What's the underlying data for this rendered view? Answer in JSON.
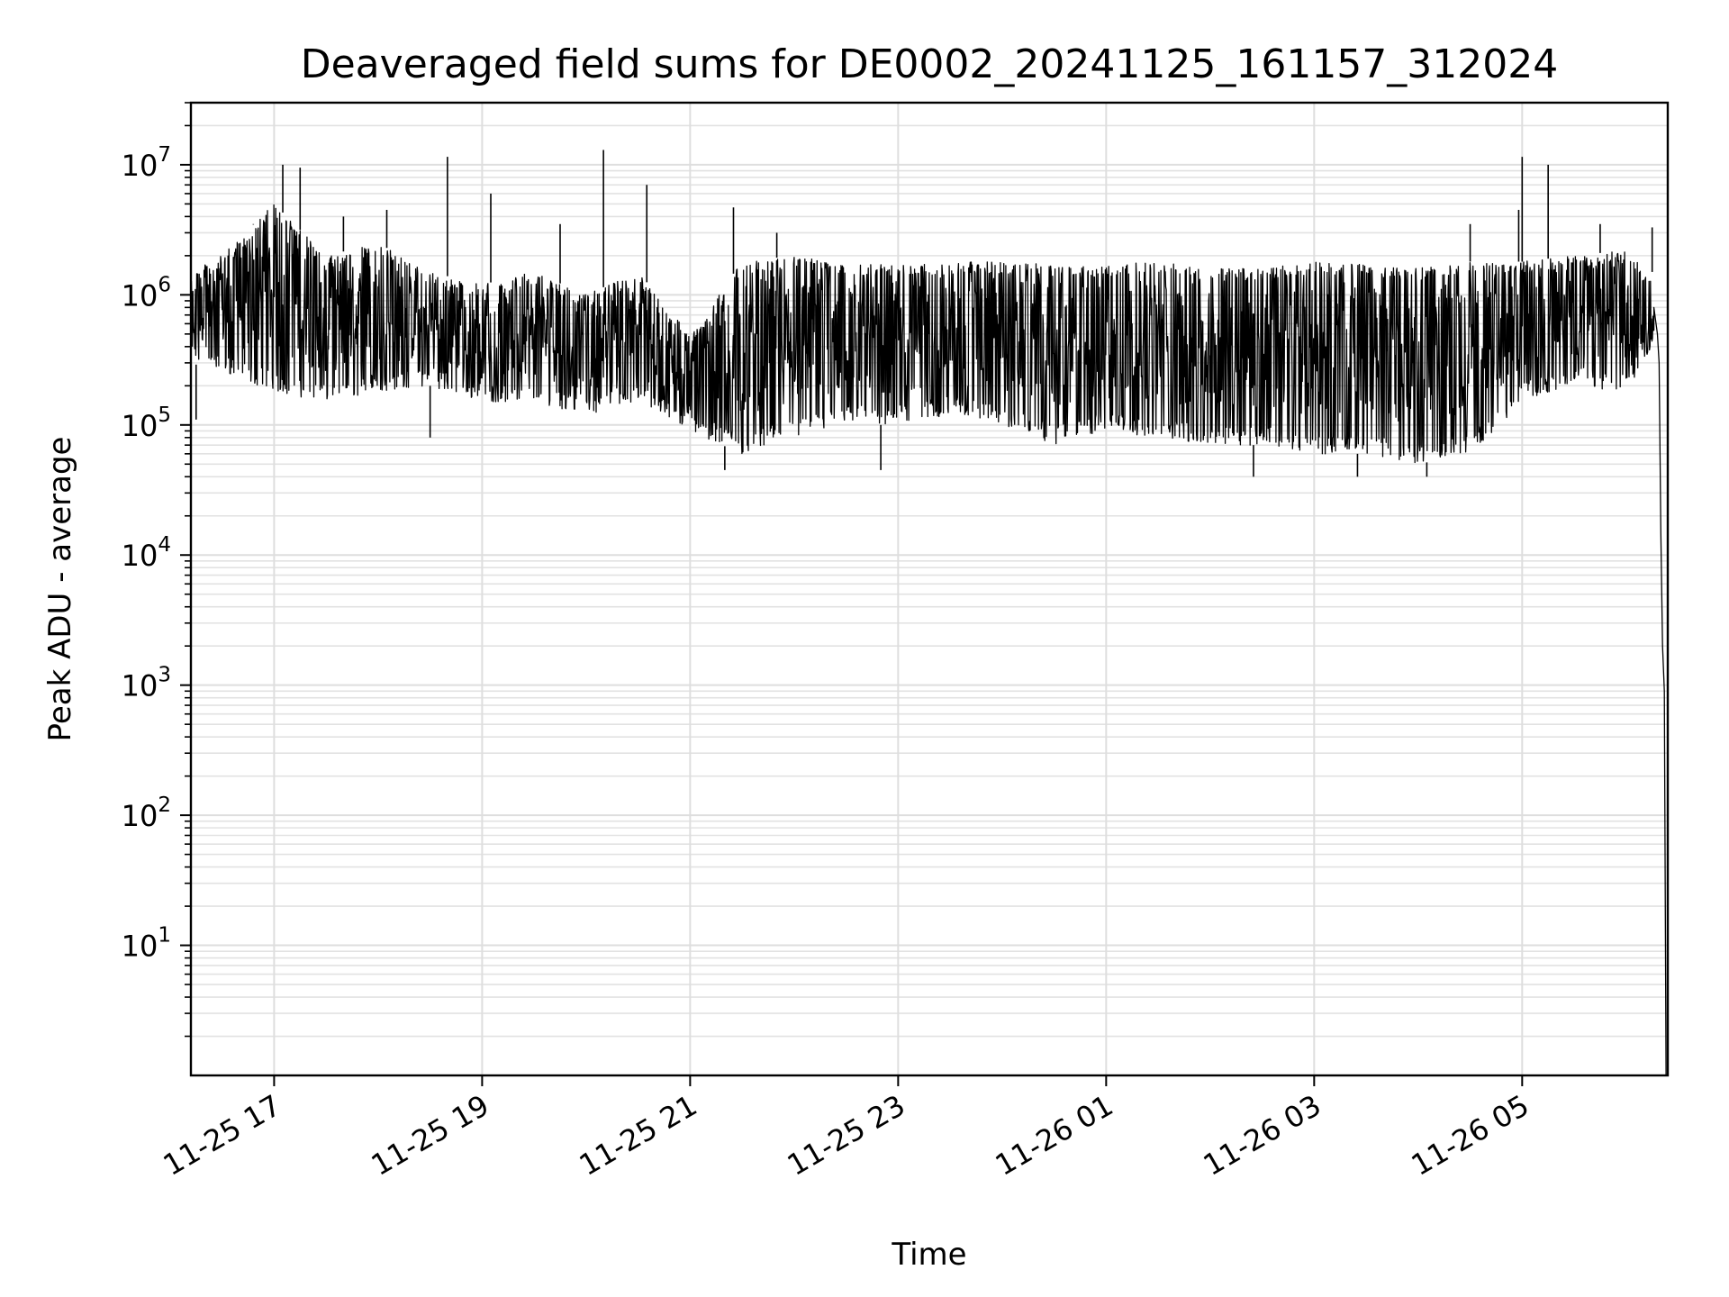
{
  "chart_data": {
    "type": "line",
    "title": "Deaveraged field sums for DE0002_20241125_161157_312024",
    "xlabel": "Time",
    "ylabel": "Peak ADU - average",
    "x_range": [
      "2024-11-25 16:12",
      "2024-11-26 06:24"
    ],
    "y_scale": "log",
    "ylim": [
      1,
      30000000
    ],
    "grid": true,
    "series_color": "#000000",
    "x_ticks": [
      {
        "date": "2024-11-25 17:00",
        "label": "11-25 17"
      },
      {
        "date": "2024-11-25 19:00",
        "label": "11-25 19"
      },
      {
        "date": "2024-11-25 21:00",
        "label": "11-25 21"
      },
      {
        "date": "2024-11-25 23:00",
        "label": "11-25 23"
      },
      {
        "date": "2024-11-26 01:00",
        "label": "11-26 01"
      },
      {
        "date": "2024-11-26 03:00",
        "label": "11-26 03"
      },
      {
        "date": "2024-11-26 05:00",
        "label": "11-26 05"
      }
    ],
    "y_ticks": [
      {
        "value": 10,
        "base": "10",
        "exp": "1"
      },
      {
        "value": 100,
        "base": "10",
        "exp": "2"
      },
      {
        "value": 1000,
        "base": "10",
        "exp": "3"
      },
      {
        "value": 10000,
        "base": "10",
        "exp": "4"
      },
      {
        "value": 100000,
        "base": "10",
        "exp": "5"
      },
      {
        "value": 1000000,
        "base": "10",
        "exp": "6"
      },
      {
        "value": 10000000,
        "base": "10",
        "exp": "7"
      }
    ],
    "series": [
      {
        "values_envelope": [
          {
            "time": "2024-11-25 16:12",
            "low": 300000,
            "high": 1500000
          },
          {
            "time": "2024-11-25 16:30",
            "low": 250000,
            "high": 2000000
          },
          {
            "time": "2024-11-25 17:00",
            "low": 180000,
            "high": 5000000
          },
          {
            "time": "2024-11-25 17:30",
            "low": 150000,
            "high": 2000000
          },
          {
            "time": "2024-11-25 18:00",
            "low": 180000,
            "high": 2500000
          },
          {
            "time": "2024-11-25 18:30",
            "low": 200000,
            "high": 1500000
          },
          {
            "time": "2024-11-25 19:00",
            "low": 150000,
            "high": 1200000
          },
          {
            "time": "2024-11-25 19:30",
            "low": 150000,
            "high": 1500000
          },
          {
            "time": "2024-11-25 20:00",
            "low": 120000,
            "high": 1000000
          },
          {
            "time": "2024-11-25 20:30",
            "low": 150000,
            "high": 1500000
          },
          {
            "time": "2024-11-25 21:00",
            "low": 90000,
            "high": 500000
          },
          {
            "time": "2024-11-25 21:30",
            "low": 60000,
            "high": 1800000
          },
          {
            "time": "2024-11-25 22:00",
            "low": 80000,
            "high": 2000000
          },
          {
            "time": "2024-11-25 22:30",
            "low": 100000,
            "high": 1800000
          },
          {
            "time": "2024-11-25 23:00",
            "low": 100000,
            "high": 1700000
          },
          {
            "time": "2024-11-25 23:30",
            "low": 120000,
            "high": 1800000
          },
          {
            "time": "2024-11-26 00:00",
            "low": 100000,
            "high": 1800000
          },
          {
            "time": "2024-11-26 00:30",
            "low": 70000,
            "high": 1700000
          },
          {
            "time": "2024-11-26 01:00",
            "low": 90000,
            "high": 1700000
          },
          {
            "time": "2024-11-26 01:30",
            "low": 80000,
            "high": 1800000
          },
          {
            "time": "2024-11-26 02:00",
            "low": 70000,
            "high": 1600000
          },
          {
            "time": "2024-11-26 02:30",
            "low": 70000,
            "high": 1600000
          },
          {
            "time": "2024-11-26 03:00",
            "low": 60000,
            "high": 1800000
          },
          {
            "time": "2024-11-26 03:30",
            "low": 60000,
            "high": 1700000
          },
          {
            "time": "2024-11-26 04:00",
            "low": 50000,
            "high": 1600000
          },
          {
            "time": "2024-11-26 04:30",
            "low": 60000,
            "high": 1800000
          },
          {
            "time": "2024-11-26 05:00",
            "low": 150000,
            "high": 1800000
          },
          {
            "time": "2024-11-26 05:30",
            "low": 200000,
            "high": 2000000
          },
          {
            "time": "2024-11-26 06:00",
            "low": 180000,
            "high": 2200000
          },
          {
            "time": "2024-11-26 06:15",
            "low": 400000,
            "high": 1500000
          }
        ],
        "spikes": [
          {
            "time": "2024-11-25 16:48",
            "value": 3500000
          },
          {
            "time": "2024-11-25 17:05",
            "value": 10000000
          },
          {
            "time": "2024-11-25 17:15",
            "value": 9500000
          },
          {
            "time": "2024-11-25 17:40",
            "value": 4000000
          },
          {
            "time": "2024-11-25 18:05",
            "value": 4500000
          },
          {
            "time": "2024-11-25 18:40",
            "value": 11500000
          },
          {
            "time": "2024-11-25 19:05",
            "value": 6000000
          },
          {
            "time": "2024-11-25 19:45",
            "value": 3500000
          },
          {
            "time": "2024-11-25 20:10",
            "value": 13000000
          },
          {
            "time": "2024-11-25 20:35",
            "value": 7000000
          },
          {
            "time": "2024-11-25 21:25",
            "value": 4700000
          },
          {
            "time": "2024-11-25 21:50",
            "value": 3000000
          },
          {
            "time": "2024-11-26 04:30",
            "value": 3500000
          },
          {
            "time": "2024-11-26 04:58",
            "value": 4500000
          },
          {
            "time": "2024-11-26 05:00",
            "value": 11500000
          },
          {
            "time": "2024-11-26 05:15",
            "value": 10000000
          },
          {
            "time": "2024-11-26 05:45",
            "value": 3500000
          },
          {
            "time": "2024-11-26 06:15",
            "value": 3300000
          }
        ],
        "dips": [
          {
            "time": "2024-11-25 16:15",
            "value": 110000
          },
          {
            "time": "2024-11-25 18:30",
            "value": 80000
          },
          {
            "time": "2024-11-25 21:20",
            "value": 45000
          },
          {
            "time": "2024-11-25 22:50",
            "value": 45000
          },
          {
            "time": "2024-11-26 02:25",
            "value": 40000
          },
          {
            "time": "2024-11-26 03:25",
            "value": 40000
          },
          {
            "time": "2024-11-26 04:05",
            "value": 40000
          }
        ],
        "tail": [
          {
            "time": "2024-11-26 06:16",
            "value": 800000
          },
          {
            "time": "2024-11-26 06:18",
            "value": 500000
          },
          {
            "time": "2024-11-26 06:19",
            "value": 300000
          },
          {
            "time": "2024-11-26 06:20",
            "value": 15000
          },
          {
            "time": "2024-11-26 06:21",
            "value": 2000
          },
          {
            "time": "2024-11-26 06:22",
            "value": 900
          },
          {
            "time": "2024-11-26 06:23",
            "value": 1
          }
        ]
      }
    ]
  }
}
